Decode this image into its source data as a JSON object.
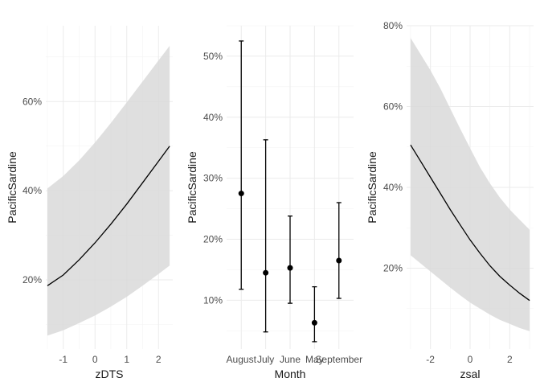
{
  "chart_data": [
    {
      "type": "line",
      "xlabel": "zDTS",
      "ylabel": "PacificSardine",
      "xlim": [
        -1.55,
        2.45
      ],
      "ylim": [
        0.045,
        0.77
      ],
      "x_ticks": [
        {
          "value": -1,
          "label": "-1"
        },
        {
          "value": 0,
          "label": "0"
        },
        {
          "value": 1,
          "label": "1"
        },
        {
          "value": 2,
          "label": "2"
        }
      ],
      "y_ticks": [
        {
          "value": 0.2,
          "label": "20%"
        },
        {
          "value": 0.4,
          "label": "40%"
        },
        {
          "value": 0.6,
          "label": "60%"
        }
      ],
      "x": [
        -1.5,
        -1.0,
        -0.5,
        0.0,
        0.5,
        1.0,
        1.5,
        2.0,
        2.35
      ],
      "fit": [
        0.187,
        0.211,
        0.245,
        0.283,
        0.325,
        0.37,
        0.418,
        0.466,
        0.5
      ],
      "lower": [
        0.075,
        0.087,
        0.103,
        0.12,
        0.14,
        0.162,
        0.187,
        0.213,
        0.232
      ],
      "upper": [
        0.405,
        0.433,
        0.468,
        0.508,
        0.552,
        0.598,
        0.645,
        0.692,
        0.725
      ],
      "grid": true
    },
    {
      "type": "scatter",
      "xlabel": "Month",
      "ylabel": "PacificSardine",
      "ylim": [
        0.02,
        0.55
      ],
      "categories": [
        "August",
        "July",
        "June",
        "May",
        "September"
      ],
      "values": [
        0.275,
        0.145,
        0.153,
        0.063,
        0.165
      ],
      "lower": [
        0.118,
        0.048,
        0.095,
        0.032,
        0.103
      ],
      "upper": [
        0.525,
        0.363,
        0.238,
        0.122,
        0.26
      ],
      "y_ticks": [
        {
          "value": 0.1,
          "label": "10%"
        },
        {
          "value": 0.2,
          "label": "20%"
        },
        {
          "value": 0.3,
          "label": "30%"
        },
        {
          "value": 0.4,
          "label": "40%"
        },
        {
          "value": 0.5,
          "label": "50%"
        }
      ],
      "grid": true
    },
    {
      "type": "line",
      "xlabel": "zsal",
      "ylabel": "PacificSardine",
      "xlim": [
        -3.2,
        3.2
      ],
      "ylim": [
        0.0,
        0.8
      ],
      "x_ticks": [
        {
          "value": -2,
          "label": "-2"
        },
        {
          "value": 0,
          "label": "0"
        },
        {
          "value": 2,
          "label": "2"
        }
      ],
      "y_ticks": [
        {
          "value": 0.2,
          "label": "20%"
        },
        {
          "value": 0.4,
          "label": "40%"
        },
        {
          "value": 0.6,
          "label": "60%"
        },
        {
          "value": 0.8,
          "label": "80%"
        }
      ],
      "x": [
        -3.0,
        -2.5,
        -2.0,
        -1.5,
        -1.0,
        -0.5,
        0.0,
        0.5,
        1.0,
        1.5,
        2.0,
        2.5,
        3.0
      ],
      "fit": [
        0.505,
        0.465,
        0.425,
        0.385,
        0.345,
        0.307,
        0.27,
        0.237,
        0.206,
        0.18,
        0.158,
        0.138,
        0.12
      ],
      "lower": [
        0.232,
        0.212,
        0.192,
        0.172,
        0.152,
        0.133,
        0.115,
        0.1,
        0.085,
        0.072,
        0.062,
        0.052,
        0.044
      ],
      "upper": [
        0.77,
        0.73,
        0.69,
        0.645,
        0.595,
        0.545,
        0.497,
        0.45,
        0.41,
        0.375,
        0.345,
        0.32,
        0.295
      ],
      "grid": true
    }
  ]
}
